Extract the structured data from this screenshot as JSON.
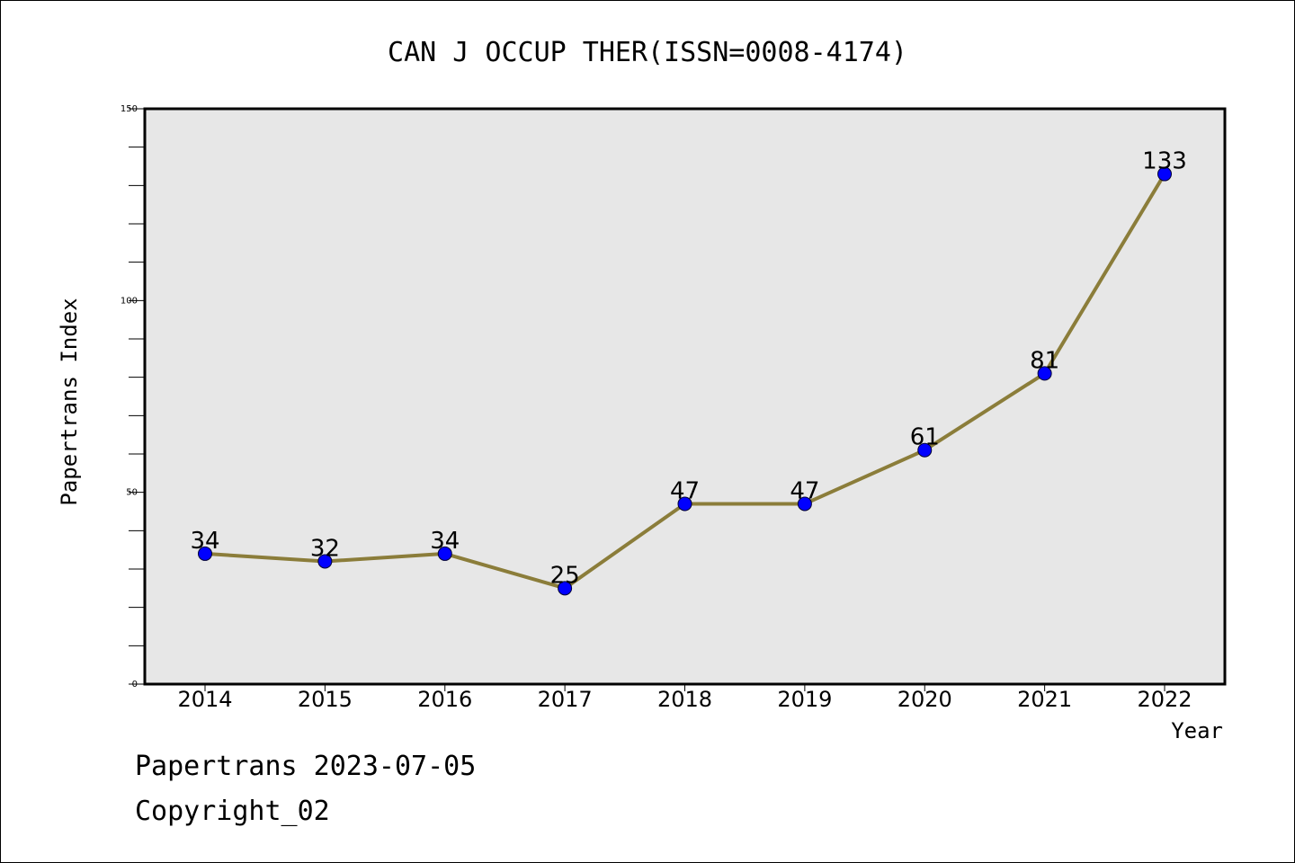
{
  "footer": {
    "line1": "Papertrans 2023-07-05",
    "line2": "Copyright_02"
  },
  "colors": {
    "background": "#ffffff",
    "plot_background": "#e7e7e7",
    "line": "#8b7d3a",
    "marker": "#0000ff",
    "axis": "#000000"
  },
  "chart_data": {
    "type": "line",
    "title": "CAN J OCCUP THER(ISSN=0008-4174)",
    "xlabel": "Year",
    "ylabel": "Papertrans Index",
    "categories": [
      "2014",
      "2015",
      "2016",
      "2017",
      "2018",
      "2019",
      "2020",
      "2021",
      "2022"
    ],
    "series": [
      {
        "values": [
          34,
          32,
          34,
          25,
          47,
          47,
          61,
          81,
          133
        ],
        "data_labels": [
          "34",
          "32",
          "34",
          "25",
          "47",
          "47",
          "61",
          "81",
          "133"
        ]
      }
    ],
    "ylim": [
      0,
      150
    ],
    "yticks_major": [
      0,
      50,
      100,
      150
    ],
    "yticks_minor_step": 10,
    "grid": false,
    "legend": "none",
    "marker": "circle"
  }
}
